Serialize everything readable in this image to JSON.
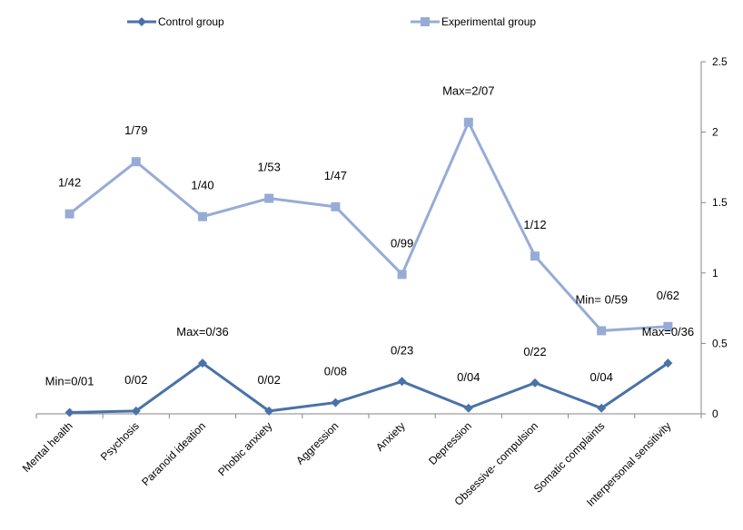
{
  "chart_data": {
    "type": "line",
    "title": "",
    "xlabel": "",
    "ylabel": "",
    "categories": [
      "Mental health",
      "Psychosis",
      "Paranoid ideation",
      "Phobic anxiety",
      "Aggression",
      "Anxiety",
      "Depression",
      "Obsessive- compulsion",
      "Somatic complaints",
      "Interpersonal sensitivity"
    ],
    "ylim": [
      0,
      2.5
    ],
    "yticks": [
      0,
      0.5,
      1,
      1.5,
      2,
      2.5
    ],
    "ytick_labels": [
      "0",
      "0.5",
      "1",
      "1.5",
      "2",
      "2.5"
    ],
    "y_axis_position": "right",
    "grid": false,
    "legend": "top",
    "series": [
      {
        "name": "Control group",
        "color": "#4a72a8",
        "marker": "diamond",
        "values": [
          0.01,
          0.02,
          0.36,
          0.02,
          0.08,
          0.23,
          0.04,
          0.22,
          0.04,
          0.36
        ],
        "labels": [
          "Min=0/01",
          "0/02",
          "Max=0/36",
          "0/02",
          "0/08",
          "0/23",
          "0/04",
          "0/22",
          "0/04",
          "Max=0/36"
        ]
      },
      {
        "name": "Experimental group",
        "color": "#96acd6",
        "marker": "square",
        "values": [
          1.42,
          1.79,
          1.4,
          1.53,
          1.47,
          0.99,
          2.07,
          1.12,
          0.59,
          0.62
        ],
        "labels": [
          "1/42",
          "1/79",
          "1/40",
          "1/53",
          "1/47",
          "0/99",
          "Max=2/07",
          "1/12",
          "Min= 0/59",
          "0/62"
        ]
      }
    ]
  }
}
